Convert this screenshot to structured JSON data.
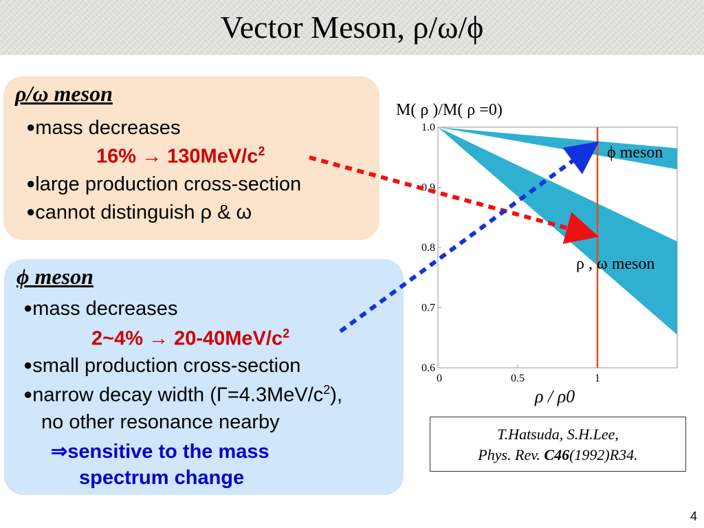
{
  "slide": {
    "title": "Vector Meson, ρ/ω/ϕ",
    "page_number": "4"
  },
  "rho_box": {
    "heading": "ρ/ω meson",
    "line1": "mass decreases",
    "line2": "16% → 130MeV/c",
    "line2_sup": "2",
    "line3": "large production cross-section",
    "line4": "cannot distinguish ρ & ω"
  },
  "phi_box": {
    "heading": "ϕ meson",
    "line1": "mass decreases",
    "line2": "2~4% → 20-40MeV/c",
    "line2_sup": "2",
    "line3": "small production cross-section",
    "line4_a": "narrow decay width (Γ=4.3MeV/c",
    "line4_sup": "2",
    "line4_b": "),",
    "line5": "no other resonance nearby",
    "line6": "⇒sensitive to the mass",
    "line7": "spectrum change"
  },
  "chart_data": {
    "type": "area",
    "ylabel": "M( ρ )/M( ρ =0)",
    "xlabel": "ρ / ρ0",
    "x_ticks": [
      "0",
      "0.5",
      "1"
    ],
    "y_ticks": [
      "1.0",
      "0.9",
      "0.8",
      "0.7",
      "0.6"
    ],
    "xlim": [
      0,
      1.5
    ],
    "ylim": [
      0.6,
      1.0
    ],
    "vertical_line_x": 1.0,
    "series": [
      {
        "name": "ϕ meson",
        "x": [
          0,
          1.5
        ],
        "upper": [
          1.0,
          0.965
        ],
        "lower": [
          1.0,
          0.93
        ]
      },
      {
        "name": "ρ , ω meson",
        "x": [
          0,
          1.5
        ],
        "upper": [
          1.0,
          0.81
        ],
        "lower": [
          1.0,
          0.655
        ]
      }
    ],
    "colors": {
      "band": "#2fb0d0",
      "line": "#e05020",
      "arrow_rho": "#ee1111",
      "arrow_phi": "#1133dd"
    }
  },
  "citation": {
    "line1": "T.Hatsuda, S.H.Lee,",
    "line2_a": "Phys. Rev. ",
    "line2_b": "C46",
    "line2_c": "(1992)R34."
  }
}
